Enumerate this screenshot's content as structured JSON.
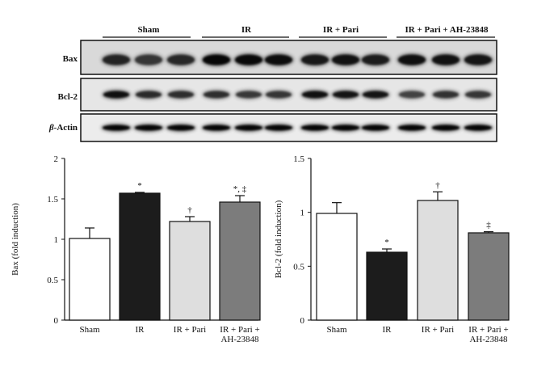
{
  "blot": {
    "groups": [
      "Sham",
      "IR",
      "IR + Pari",
      "IR + Pari + AH-23848"
    ],
    "rows": [
      {
        "label": "Bax",
        "italic_prefix": ""
      },
      {
        "label": "Bcl-2",
        "italic_prefix": ""
      },
      {
        "label": "-Actin",
        "italic_prefix": "β"
      }
    ]
  },
  "chart_data": [
    {
      "type": "bar",
      "categories": [
        "Sham",
        "IR",
        "IR + Pari",
        "IR + Pari +\nAH-23848"
      ],
      "values": [
        1.01,
        1.57,
        1.22,
        1.46
      ],
      "errors": [
        0.13,
        0.01,
        0.06,
        0.08
      ],
      "annotations": [
        "",
        "*",
        "†",
        "*, ‡"
      ],
      "fills": [
        "#ffffff",
        "#1c1c1c",
        "#dedede",
        "#7c7c7c"
      ],
      "ylabel": "Bax (fold induction)",
      "ylim": [
        0,
        2
      ],
      "yticks": [
        "0",
        "0.5",
        "1",
        "1.5",
        "2"
      ],
      "ytick_values": [
        0,
        0.5,
        1,
        1.5,
        2
      ],
      "grid": false
    },
    {
      "type": "bar",
      "categories": [
        "Sham",
        "IR",
        "IR + Pari",
        "IR + Pari +\nAH-23848"
      ],
      "values": [
        0.99,
        0.63,
        1.11,
        0.81
      ],
      "errors": [
        0.1,
        0.03,
        0.08,
        0.01
      ],
      "annotations": [
        "",
        "*",
        "†",
        "‡"
      ],
      "fills": [
        "#ffffff",
        "#1c1c1c",
        "#dedede",
        "#7c7c7c"
      ],
      "ylabel": "Bcl-2 (fold induction)",
      "ylim": [
        0,
        1.5
      ],
      "yticks": [
        "0",
        "0.5",
        "1",
        "1.5"
      ],
      "ytick_values": [
        0,
        0.5,
        1,
        1.5
      ],
      "grid": false
    }
  ]
}
